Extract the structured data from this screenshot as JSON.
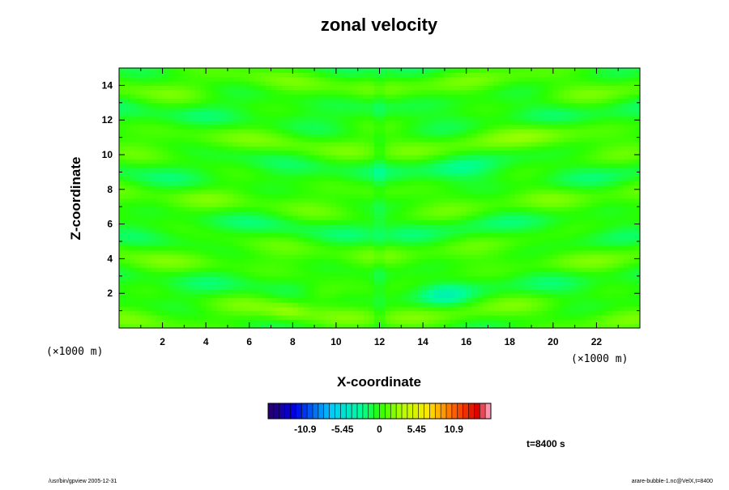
{
  "chart_data": {
    "type": "heatmap",
    "title": "zonal velocity",
    "xlabel": "X-coordinate",
    "ylabel": "Z-coordinate",
    "x_unit": "(×1000 m)",
    "y_unit": "(×1000 m)",
    "xlim": [
      0,
      24
    ],
    "ylim": [
      0,
      15
    ],
    "x_ticks": [
      2,
      4,
      6,
      8,
      10,
      12,
      14,
      16,
      18,
      20,
      22
    ],
    "y_ticks": [
      2,
      4,
      6,
      8,
      10,
      12,
      14
    ],
    "colorbar": {
      "range": [
        -16.35,
        16.35
      ],
      "tick_values": [
        -10.9,
        -5.45,
        0,
        5.45,
        10.9
      ],
      "tick_labels": [
        "-10.9",
        "-5.45",
        "0",
        "5.45",
        "10.9"
      ],
      "colormap": "rainbow"
    },
    "time_label": "t=8400 s",
    "field_range": [
      -4,
      4
    ]
  },
  "footer": {
    "left": "/usr/bin/gpview 2005-12-31",
    "right": "arare-bubble-1.nc@VelX,t=8400"
  }
}
